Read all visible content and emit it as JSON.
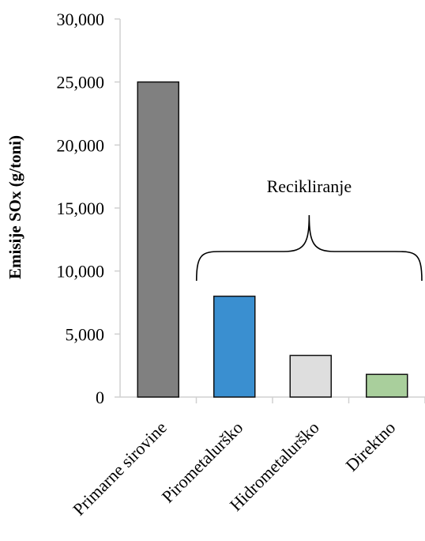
{
  "chart_data": {
    "type": "bar",
    "title": "",
    "xlabel": "",
    "ylabel": "Emisije SOx (g/toni)",
    "ylim": [
      0,
      30000
    ],
    "yticks": [
      0,
      5000,
      10000,
      15000,
      20000,
      25000,
      30000
    ],
    "ytick_labels": [
      "0",
      "5,000",
      "10,000",
      "15,000",
      "20,000",
      "25,000",
      "30,000"
    ],
    "categories": [
      "Primarne sirovine",
      "Pirometalurško",
      "Hidrometalurško",
      "Direktno"
    ],
    "values": [
      25000,
      8000,
      3300,
      1800
    ],
    "colors": [
      "#808080",
      "#3a8fd0",
      "#dedede",
      "#a9cf9c"
    ],
    "grid": false,
    "annotation": {
      "text": "Recikliranje",
      "spans_categories": [
        "Pirometalurško",
        "Hidrometalurško",
        "Direktno"
      ]
    }
  }
}
